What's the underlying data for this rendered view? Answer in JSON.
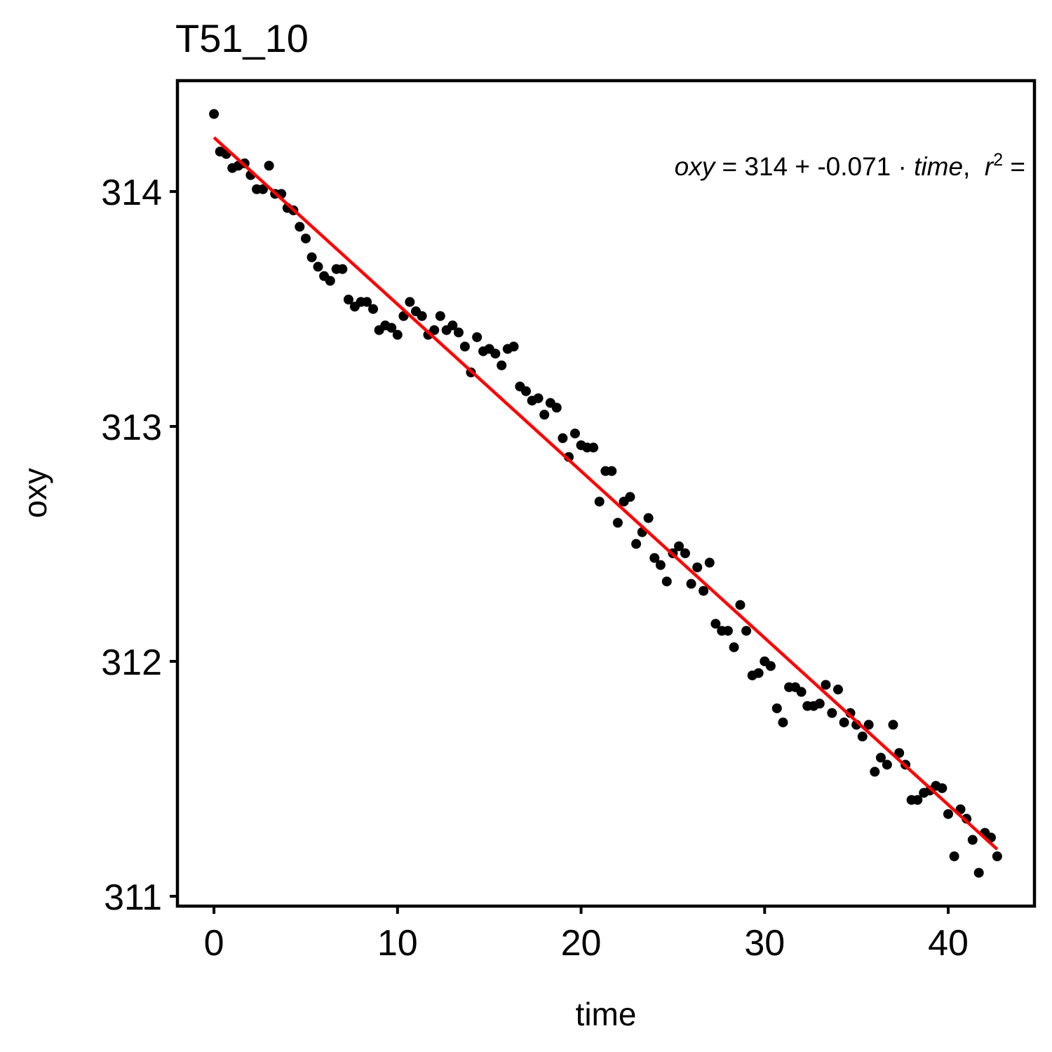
{
  "chart_data": {
    "type": "scatter",
    "title": "T51_10",
    "x_label": "time",
    "y_label": "oxy",
    "color": "#000000",
    "x": [
      0,
      0.33,
      0.67,
      1,
      1.33,
      1.67,
      2,
      2.33,
      2.67,
      3,
      3.33,
      3.67,
      4,
      4.33,
      4.67,
      5,
      5.33,
      5.67,
      6,
      6.33,
      6.67,
      7,
      7.33,
      7.67,
      8,
      8.33,
      8.67,
      9,
      9.33,
      9.67,
      10,
      10.33,
      10.67,
      11,
      11.33,
      11.67,
      12,
      12.33,
      12.67,
      13,
      13.33,
      13.67,
      14,
      14.33,
      14.67,
      15,
      15.33,
      15.67,
      16,
      16.33,
      16.67,
      17,
      17.33,
      17.67,
      18,
      18.33,
      18.67,
      19,
      19.33,
      19.67,
      20,
      20.33,
      20.67,
      21,
      21.33,
      21.67,
      22,
      22.33,
      22.67,
      23,
      23.33,
      23.67,
      24,
      24.33,
      24.67,
      25,
      25.33,
      25.67,
      26,
      26.33,
      26.67,
      27,
      27.33,
      27.67,
      28,
      28.33,
      28.67,
      29,
      29.33,
      29.67,
      30,
      30.33,
      30.67,
      31,
      31.33,
      31.67,
      32,
      32.33,
      32.67,
      33,
      33.33,
      33.67,
      34,
      34.33,
      34.67,
      35,
      35.33,
      35.67,
      36,
      36.33,
      36.67,
      37,
      37.33,
      37.67,
      38,
      38.33,
      38.67,
      39,
      39.33,
      39.67,
      40,
      40.33,
      40.67,
      41,
      41.33,
      41.67,
      42,
      42.33,
      42.67
    ],
    "values": [
      314.33,
      314.17,
      314.16,
      314.1,
      314.11,
      314.12,
      314.07,
      314.01,
      314.01,
      314.11,
      313.99,
      313.99,
      313.93,
      313.92,
      313.85,
      313.8,
      313.72,
      313.68,
      313.64,
      313.62,
      313.67,
      313.67,
      313.54,
      313.51,
      313.53,
      313.53,
      313.5,
      313.41,
      313.43,
      313.42,
      313.39,
      313.47,
      313.53,
      313.49,
      313.47,
      313.39,
      313.41,
      313.47,
      313.41,
      313.43,
      313.4,
      313.34,
      313.23,
      313.38,
      313.32,
      313.33,
      313.31,
      313.26,
      313.33,
      313.34,
      313.17,
      313.15,
      313.11,
      313.12,
      313.05,
      313.1,
      313.08,
      312.95,
      312.87,
      312.97,
      312.92,
      312.91,
      312.91,
      312.68,
      312.81,
      312.81,
      312.59,
      312.68,
      312.7,
      312.5,
      312.55,
      312.61,
      312.44,
      312.41,
      312.34,
      312.46,
      312.49,
      312.46,
      312.33,
      312.4,
      312.3,
      312.42,
      312.16,
      312.13,
      312.13,
      312.06,
      312.24,
      312.13,
      311.94,
      311.95,
      312,
      311.98,
      311.8,
      311.74,
      311.89,
      311.89,
      311.87,
      311.81,
      311.81,
      311.82,
      311.9,
      311.78,
      311.88,
      311.74,
      311.78,
      311.73,
      311.68,
      311.73,
      311.53,
      311.59,
      311.56,
      311.73,
      311.61,
      311.56,
      311.41,
      311.41,
      311.44,
      311.45,
      311.47,
      311.46,
      311.35,
      311.17,
      311.37,
      311.33,
      311.24,
      311.1,
      311.27,
      311.25,
      311.17
    ],
    "fit": {
      "color": "#ff0000",
      "x": [
        0,
        42.67
      ],
      "values": [
        314.23,
        311.2
      ]
    },
    "annotation": [
      {
        "text": "oxy",
        "italic": true
      },
      {
        "text": " = ",
        "italic": false
      },
      {
        "text": "314",
        "italic": false
      },
      {
        "text": " + ",
        "italic": false
      },
      {
        "text": "-0.071",
        "italic": false
      },
      {
        "text": " · ",
        "italic": false
      },
      {
        "text": "time",
        "italic": true
      },
      {
        "text": ",  ",
        "italic": false
      },
      {
        "text": "r",
        "italic": true
      },
      {
        "text": "2",
        "italic": false,
        "sup": true
      },
      {
        "text": " =",
        "italic": false
      }
    ],
    "xlim": [
      -1.99,
      44.7
    ],
    "ylim": [
      310.958,
      314.472
    ],
    "xticks": [
      0,
      10,
      20,
      30,
      40
    ],
    "yticks": [
      311,
      312,
      313,
      314
    ]
  }
}
